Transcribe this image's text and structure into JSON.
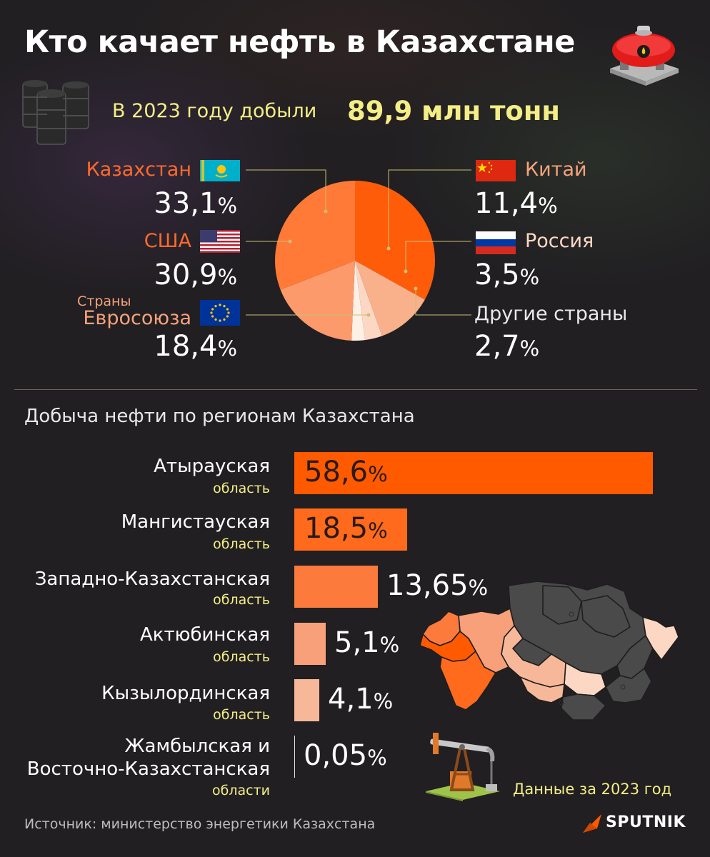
{
  "title": "Кто качает нефть в Казахстане",
  "total": {
    "label": "В 2023 году добыли",
    "value": "89,9 млн тонн"
  },
  "unit": "%",
  "source": "Источник: министерство энергетики Казахстана",
  "note": "Данные за 2023 год",
  "brand": "SPUTNIK",
  "colors": {
    "background": "#211f22",
    "accent_orange": "#ff5a00",
    "yellow_text": "#f4ee86"
  },
  "chart_data": [
    {
      "type": "pie",
      "slices": [
        {
          "label": "Казахстан",
          "value": 33.1,
          "value_text": "33,1",
          "color": "#ff5c0a"
        },
        {
          "label": "Китай",
          "value": 11.4,
          "value_text": "11,4",
          "color": "#f9b18c"
        },
        {
          "label": "Россия",
          "value": 3.5,
          "value_text": "3,5",
          "color": "#fcd8c4"
        },
        {
          "label": "Другие страны",
          "value": 2.7,
          "value_text": "2,7",
          "color": "#fff0e6"
        },
        {
          "label": "Евросоюза",
          "label_prefix": "Страны",
          "value": 18.4,
          "value_text": "18,4",
          "color": "#fc9a6c"
        },
        {
          "label": "США",
          "value": 30.9,
          "value_text": "30,9",
          "color": "#ff7a36"
        }
      ]
    },
    {
      "type": "bar",
      "title": "Добыча нефти по регионам Казахстана",
      "xlim": [
        0,
        58.6
      ],
      "bars": [
        {
          "name": "Атырауская",
          "sub": "область",
          "value": 58.6,
          "value_text": "58,6",
          "color": "#ff5a00"
        },
        {
          "name": "Мангистауская",
          "sub": "область",
          "value": 18.5,
          "value_text": "18,5",
          "color": "#ff6a1c"
        },
        {
          "name": "Западно-Казахстанская",
          "sub": "область",
          "value": 13.65,
          "value_text": "13,65",
          "color": "#fb7a3c"
        },
        {
          "name": "Актюбинская",
          "sub": "область",
          "value": 5.1,
          "value_text": "5,1",
          "color": "#f7a07a"
        },
        {
          "name": "Кызылординская",
          "sub": "область",
          "value": 4.1,
          "value_text": "4,1",
          "color": "#f7b89a"
        },
        {
          "name": [
            "Жамбылская и",
            "Восточно-Казахстанская"
          ],
          "sub": "области",
          "value": 0.05,
          "value_text": "0,05",
          "color": "#e9e9e9"
        }
      ]
    }
  ]
}
